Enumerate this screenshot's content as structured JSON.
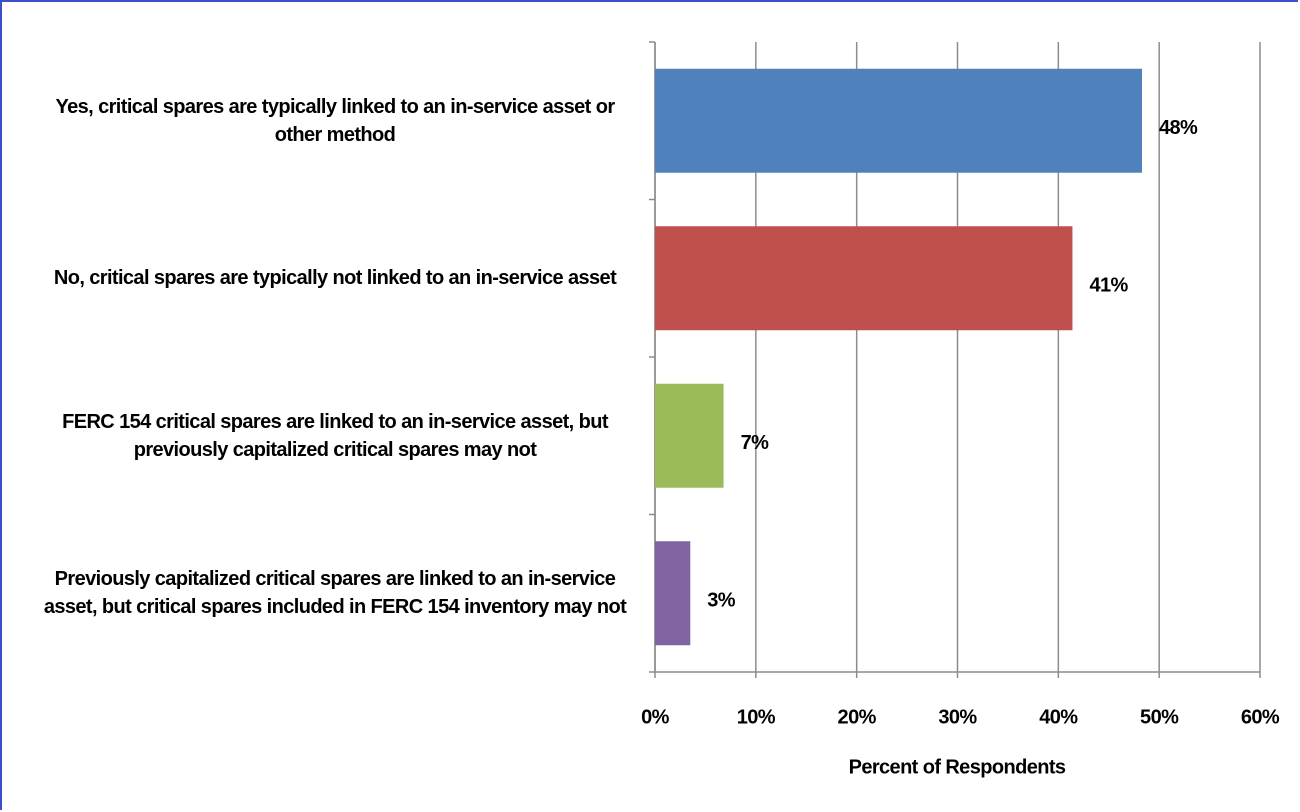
{
  "chart_data": {
    "type": "barh",
    "categories": [
      "Yes, critical spares are typically linked to an in-service asset or other method",
      "No, critical spares are typically not linked to an in-service asset",
      "FERC 154 critical spares are linked to an in-service asset, but previously capitalized critical spares may not",
      "Previously capitalized critical spares are linked to an in-service asset, but critical spares included in FERC 154 inventory may not"
    ],
    "values": [
      48.3,
      41.4,
      6.8,
      3.5
    ],
    "value_labels": [
      "48%",
      "41%",
      "7%",
      "3%"
    ],
    "colors": [
      "#4f81bd",
      "#c0504d",
      "#9bbb59",
      "#8064a2"
    ],
    "xlabel": "Percent of Respondents",
    "xlim": [
      0,
      60
    ],
    "xticks": [
      {
        "value": 0,
        "label": "0%"
      },
      {
        "value": 10,
        "label": "10%"
      },
      {
        "value": 20,
        "label": "20%"
      },
      {
        "value": 30,
        "label": "30%"
      },
      {
        "value": 40,
        "label": "40%"
      },
      {
        "value": 50,
        "label": "50%"
      },
      {
        "value": 60,
        "label": "60%"
      }
    ],
    "grid": true
  }
}
